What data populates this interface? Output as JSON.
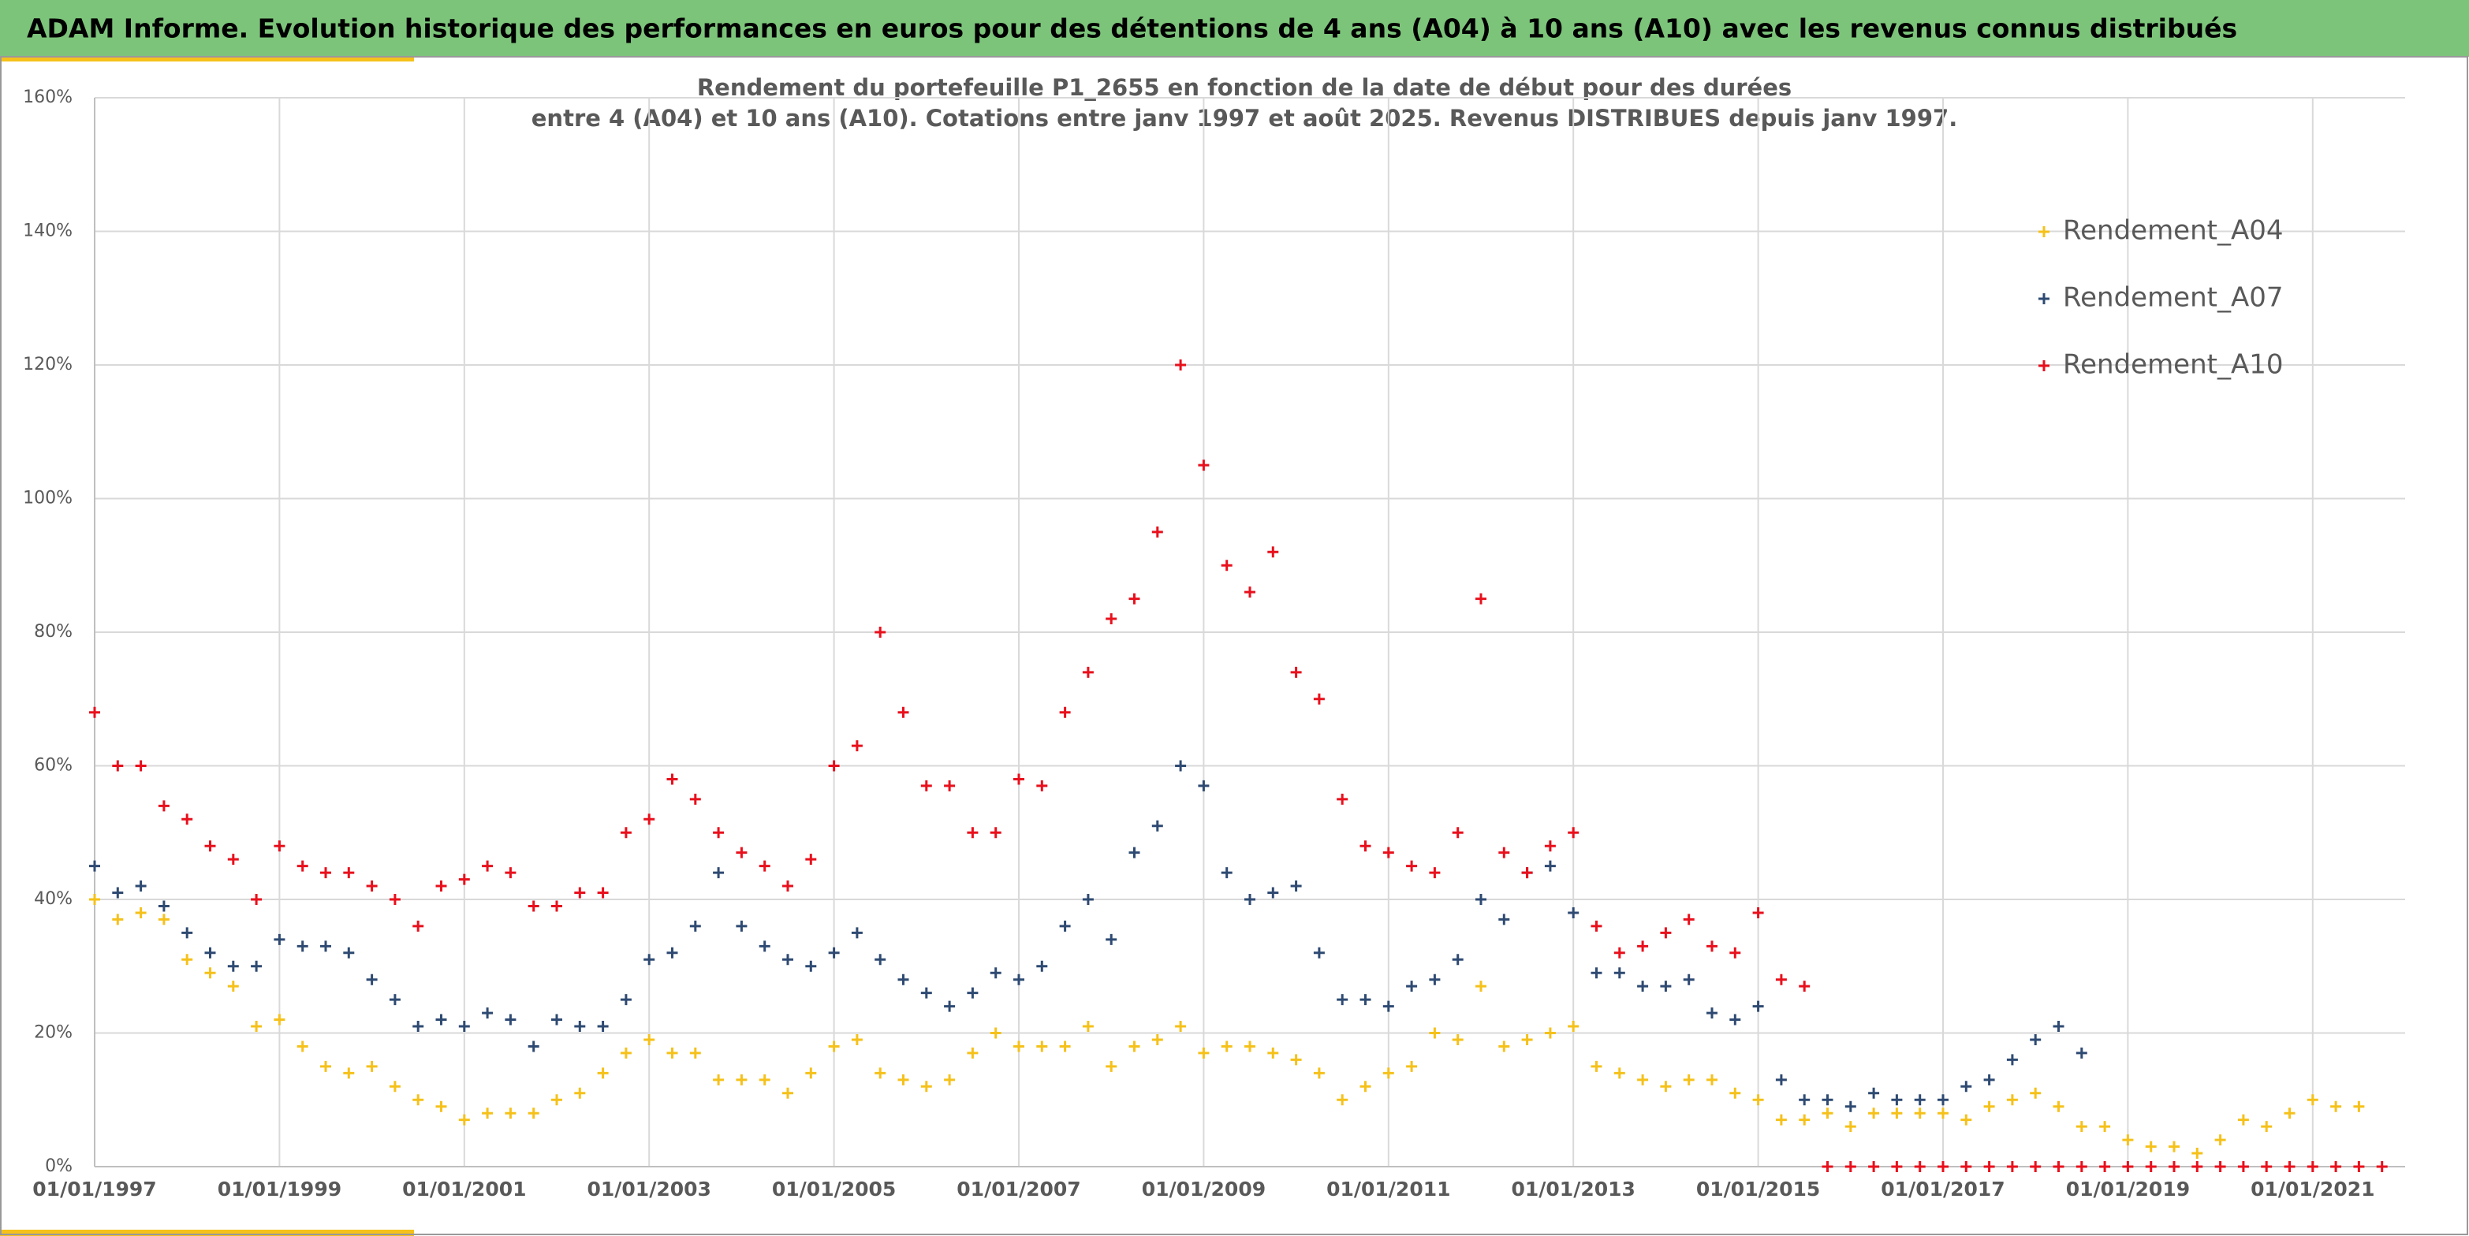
{
  "header": {
    "title": "ADAM Informe. Evolution historique des performances en euros pour des détentions de 4 ans (A04) à 10 ans (A10) avec les revenus connus distribués"
  },
  "chart_data": {
    "type": "scatter",
    "title": [
      "Rendement du portefeuille P1_2655 en fonction de la date de début pour des durées",
      "entre 4 (A04) et 10 ans (A10). Cotations entre janv 1997 et août 2025. Revenus DISTRIBUES depuis janv 1997."
    ],
    "xlim": [
      1997,
      2022
    ],
    "xticks": [
      {
        "value": 1997,
        "label": "01/01/1997"
      },
      {
        "value": 1999,
        "label": "01/01/1999"
      },
      {
        "value": 2001,
        "label": "01/01/2001"
      },
      {
        "value": 2003,
        "label": "01/01/2003"
      },
      {
        "value": 2005,
        "label": "01/01/2005"
      },
      {
        "value": 2007,
        "label": "01/01/2007"
      },
      {
        "value": 2009,
        "label": "01/01/2009"
      },
      {
        "value": 2011,
        "label": "01/01/2011"
      },
      {
        "value": 2013,
        "label": "01/01/2013"
      },
      {
        "value": 2015,
        "label": "01/01/2015"
      },
      {
        "value": 2017,
        "label": "01/01/2017"
      },
      {
        "value": 2019,
        "label": "01/01/2019"
      },
      {
        "value": 2021,
        "label": "01/01/2021"
      }
    ],
    "ylim": [
      0,
      160
    ],
    "yticks": [
      {
        "value": 0,
        "label": "0%"
      },
      {
        "value": 20,
        "label": "20%"
      },
      {
        "value": 40,
        "label": "40%"
      },
      {
        "value": 60,
        "label": "60%"
      },
      {
        "value": 80,
        "label": "80%"
      },
      {
        "value": 100,
        "label": "100%"
      },
      {
        "value": 120,
        "label": "120%"
      },
      {
        "value": 140,
        "label": "140%"
      },
      {
        "value": 160,
        "label": "160%"
      }
    ],
    "grid": true,
    "legend": "top-right",
    "series": [
      {
        "name": "Rendement_A04",
        "color": "#f5c11a",
        "x": [
          1997,
          1997.25,
          1997.5,
          1997.75,
          1998,
          1998.25,
          1998.5,
          1998.75,
          1999,
          1999.25,
          1999.5,
          1999.75,
          2000,
          2000.25,
          2000.5,
          2000.75,
          2001,
          2001.25,
          2001.5,
          2001.75,
          2002,
          2002.25,
          2002.5,
          2002.75,
          2003,
          2003.25,
          2003.5,
          2003.75,
          2004,
          2004.25,
          2004.5,
          2004.75,
          2005,
          2005.25,
          2005.5,
          2005.75,
          2006,
          2006.25,
          2006.5,
          2006.75,
          2007,
          2007.25,
          2007.5,
          2007.75,
          2008,
          2008.25,
          2008.5,
          2008.75,
          2009,
          2009.25,
          2009.5,
          2009.75,
          2010,
          2010.25,
          2010.5,
          2010.75,
          2011,
          2011.25,
          2011.5,
          2011.75,
          2012,
          2012.25,
          2012.5,
          2012.75,
          2013,
          2013.25,
          2013.5,
          2013.75,
          2014,
          2014.25,
          2014.5,
          2014.75,
          2015,
          2015.25,
          2015.5,
          2015.75,
          2016,
          2016.25,
          2016.5,
          2016.75,
          2017,
          2017.25,
          2017.5,
          2017.75,
          2018,
          2018.25,
          2018.5,
          2018.75,
          2019,
          2019.25,
          2019.5,
          2019.75,
          2020,
          2020.25,
          2020.5,
          2020.75,
          2021,
          2021.25,
          2021.5
        ],
        "values": [
          40,
          37,
          38,
          37,
          31,
          29,
          27,
          21,
          22,
          18,
          15,
          14,
          15,
          12,
          10,
          9,
          7,
          8,
          8,
          8,
          10,
          11,
          14,
          17,
          19,
          17,
          17,
          13,
          13,
          13,
          11,
          14,
          18,
          19,
          14,
          13,
          12,
          13,
          17,
          20,
          18,
          18,
          18,
          21,
          15,
          18,
          19,
          21,
          17,
          18,
          18,
          17,
          16,
          14,
          10,
          12,
          14,
          15,
          20,
          19,
          27,
          18,
          19,
          20,
          21,
          15,
          14,
          13,
          12,
          13,
          13,
          11,
          10,
          7,
          7,
          8,
          6,
          8,
          8,
          8,
          8,
          7,
          9,
          10,
          11,
          9,
          6,
          6,
          4,
          3,
          3,
          2,
          4,
          7,
          6,
          8,
          10,
          9,
          9
        ]
      },
      {
        "name": "Rendement_A07",
        "color": "#2e4a72",
        "x": [
          1997,
          1997.25,
          1997.5,
          1997.75,
          1998,
          1998.25,
          1998.5,
          1998.75,
          1999,
          1999.25,
          1999.5,
          1999.75,
          2000,
          2000.25,
          2000.5,
          2000.75,
          2001,
          2001.25,
          2001.5,
          2001.75,
          2002,
          2002.25,
          2002.5,
          2002.75,
          2003,
          2003.25,
          2003.5,
          2003.75,
          2004,
          2004.25,
          2004.5,
          2004.75,
          2005,
          2005.25,
          2005.5,
          2005.75,
          2006,
          2006.25,
          2006.5,
          2006.75,
          2007,
          2007.25,
          2007.5,
          2007.75,
          2008,
          2008.25,
          2008.5,
          2008.75,
          2009,
          2009.25,
          2009.5,
          2009.75,
          2010,
          2010.25,
          2010.5,
          2010.75,
          2011,
          2011.25,
          2011.5,
          2011.75,
          2012,
          2012.25,
          2012.5,
          2012.75,
          2013,
          2013.25,
          2013.5,
          2013.75,
          2014,
          2014.25,
          2014.5,
          2014.75,
          2015,
          2015.25,
          2015.5,
          2015.75,
          2016,
          2016.25,
          2016.5,
          2016.75,
          2017,
          2017.25,
          2017.5,
          2017.75,
          2018,
          2018.25,
          2018.5
        ],
        "values": [
          45,
          41,
          42,
          39,
          35,
          32,
          30,
          30,
          34,
          33,
          33,
          32,
          28,
          25,
          21,
          22,
          21,
          23,
          22,
          18,
          22,
          21,
          21,
          25,
          31,
          32,
          36,
          44,
          36,
          33,
          31,
          30,
          32,
          35,
          31,
          28,
          26,
          24,
          26,
          29,
          28,
          30,
          36,
          40,
          34,
          47,
          51,
          60,
          57,
          44,
          40,
          41,
          42,
          32,
          25,
          25,
          24,
          27,
          28,
          31,
          40,
          37,
          44,
          45,
          38,
          29,
          29,
          27,
          27,
          28,
          23,
          22,
          24,
          13,
          10,
          10,
          9,
          11,
          10,
          10,
          10,
          12,
          13,
          16,
          19,
          21,
          17
        ]
      },
      {
        "name": "Rendement_A10",
        "color": "#e8101c",
        "x": [
          1997,
          1997.25,
          1997.5,
          1997.75,
          1998,
          1998.25,
          1998.5,
          1998.75,
          1999,
          1999.25,
          1999.5,
          1999.75,
          2000,
          2000.25,
          2000.5,
          2000.75,
          2001,
          2001.25,
          2001.5,
          2001.75,
          2002,
          2002.25,
          2002.5,
          2002.75,
          2003,
          2003.25,
          2003.5,
          2003.75,
          2004,
          2004.25,
          2004.5,
          2004.75,
          2005,
          2005.25,
          2005.5,
          2005.75,
          2006,
          2006.25,
          2006.5,
          2006.75,
          2007,
          2007.25,
          2007.5,
          2007.75,
          2008,
          2008.25,
          2008.5,
          2008.75,
          2009,
          2009.25,
          2009.5,
          2009.75,
          2010,
          2010.25,
          2010.5,
          2010.75,
          2011,
          2011.25,
          2011.5,
          2011.75,
          2012,
          2012.25,
          2012.5,
          2012.75,
          2013,
          2013.25,
          2013.5,
          2013.75,
          2014,
          2014.25,
          2014.5,
          2014.75,
          2015,
          2015.25,
          2015.5,
          2015.75,
          2016,
          2016.25,
          2016.5,
          2016.75,
          2017,
          2017.25,
          2017.5,
          2017.75,
          2018,
          2018.25,
          2018.5,
          2018.75,
          2019,
          2019.25,
          2019.5,
          2019.75,
          2020,
          2020.25,
          2020.5,
          2020.75,
          2021,
          2021.25,
          2021.5,
          2021.75
        ],
        "values": [
          68,
          60,
          60,
          54,
          52,
          48,
          46,
          40,
          48,
          45,
          44,
          44,
          42,
          40,
          36,
          42,
          43,
          45,
          44,
          39,
          39,
          41,
          41,
          50,
          52,
          58,
          55,
          50,
          47,
          45,
          42,
          46,
          60,
          63,
          80,
          68,
          57,
          57,
          50,
          50,
          58,
          57,
          68,
          74,
          82,
          85,
          95,
          120,
          105,
          90,
          86,
          92,
          74,
          70,
          55,
          48,
          47,
          45,
          44,
          50,
          85,
          47,
          44,
          48,
          50,
          36,
          32,
          33,
          35,
          37,
          33,
          32,
          38,
          28,
          27,
          0,
          0,
          0,
          0,
          0,
          0,
          0,
          0,
          0,
          0,
          0,
          0,
          0,
          0,
          0,
          0,
          0,
          0,
          0,
          0,
          0,
          0,
          0,
          0,
          0
        ]
      }
    ]
  }
}
